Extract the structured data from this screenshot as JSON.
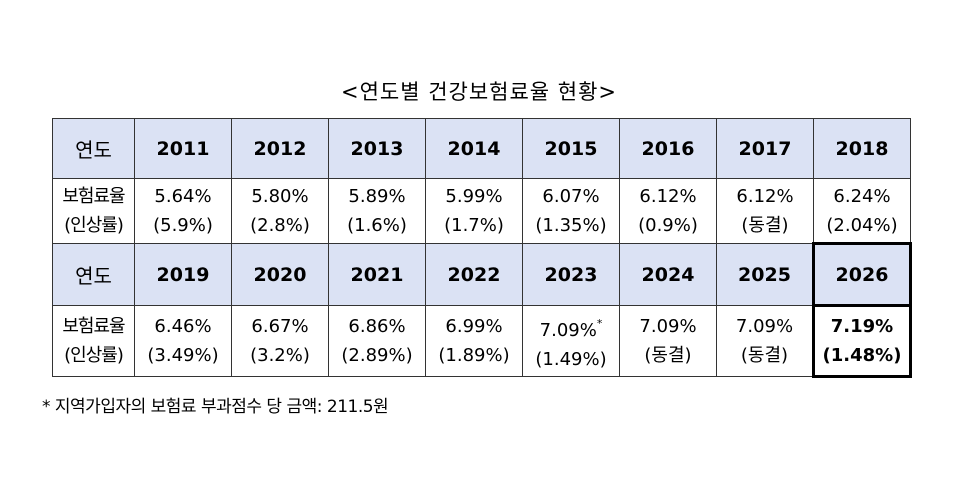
{
  "title": "<연도별 건강보험료율 현황>",
  "table": {
    "rows": [
      {
        "label": "연도",
        "cells": [
          "2011",
          "2012",
          "2013",
          "2014",
          "2015",
          "2016",
          "2017",
          "2018"
        ]
      },
      {
        "label": [
          "보험료율",
          "(인상률)"
        ],
        "cells": [
          {
            "rate": "5.64%",
            "change": "(5.9%)"
          },
          {
            "rate": "5.80%",
            "change": "(2.8%)"
          },
          {
            "rate": "5.89%",
            "change": "(1.6%)"
          },
          {
            "rate": "5.99%",
            "change": "(1.7%)"
          },
          {
            "rate": "6.07%",
            "change": "(1.35%)"
          },
          {
            "rate": "6.12%",
            "change": "(0.9%)"
          },
          {
            "rate": "6.12%",
            "change": "(동결)"
          },
          {
            "rate": "6.24%",
            "change": "(2.04%)"
          }
        ]
      },
      {
        "label": "연도",
        "cells": [
          "2019",
          "2020",
          "2021",
          "2022",
          "2023",
          "2024",
          "2025",
          "2026"
        ]
      },
      {
        "label": [
          "보험료율",
          "(인상률)"
        ],
        "cells": [
          {
            "rate": "6.46%",
            "change": "(3.49%)"
          },
          {
            "rate": "6.67%",
            "change": "(3.2%)"
          },
          {
            "rate": "6.86%",
            "change": "(2.89%)"
          },
          {
            "rate": "6.99%",
            "change": "(1.89%)"
          },
          {
            "rate": "7.09%",
            "mark": "*",
            "change": "(1.49%)"
          },
          {
            "rate": "7.09%",
            "change": "(동결)"
          },
          {
            "rate": "7.09%",
            "change": "(동결)"
          },
          {
            "rate": "7.19%",
            "change": "(1.48%)"
          }
        ]
      }
    ]
  },
  "footnote": "* 지역가입자의 보험료 부과점수 당 금액: 211.5원"
}
